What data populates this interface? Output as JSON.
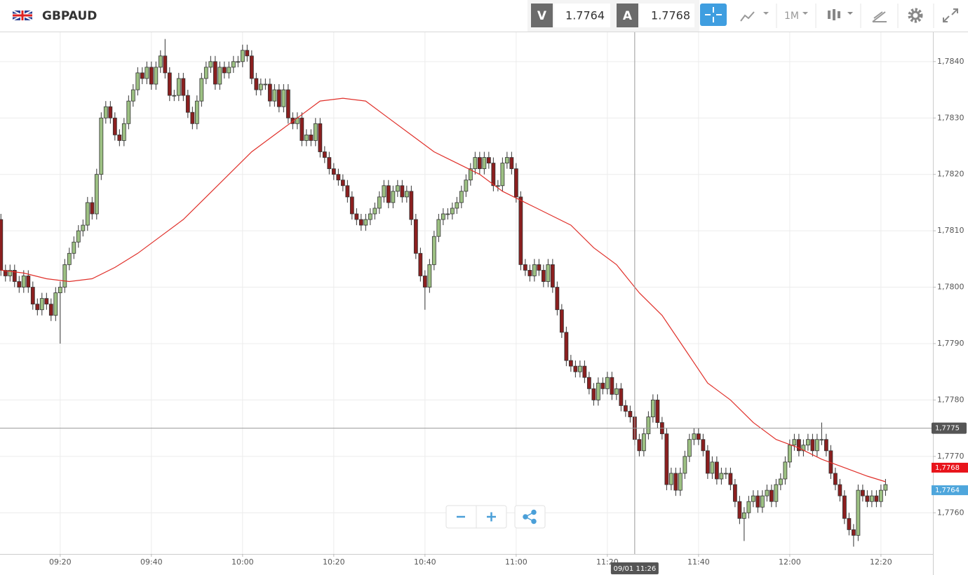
{
  "header": {
    "symbol": "GBPAUD",
    "bid_label": "V",
    "bid": "1.7764",
    "ask_label": "A",
    "ask": "1.7768",
    "timeframe": "1M"
  },
  "chart_data": {
    "type": "candlestick",
    "up_color": "#9dc183",
    "down_color": "#8b1f1f",
    "wick_color": "#333333",
    "open": [
      1.7812,
      1.7803,
      1.7802,
      1.7803,
      1.7801,
      1.78,
      1.7802,
      1.78,
      1.7797,
      1.7796,
      1.7798,
      1.7797,
      1.7795,
      1.7799,
      1.78,
      1.7804,
      1.7806,
      1.7808,
      1.781,
      1.7811,
      1.7815,
      1.7813,
      1.782,
      1.783,
      1.7832,
      1.783,
      1.7827,
      1.7826,
      1.7829,
      1.7833,
      1.7835,
      1.7838,
      1.7837,
      1.7839,
      1.7836,
      1.7839,
      1.7841,
      1.7838,
      1.7834,
      1.7834,
      1.7837,
      1.7834,
      1.7831,
      1.7829,
      1.7833,
      1.7837,
      1.7839,
      1.784,
      1.7836,
      1.7839,
      1.7838,
      1.7839,
      1.784,
      1.784,
      1.7842,
      1.7841,
      1.7837,
      1.7835,
      1.7836,
      1.7836,
      1.7833,
      1.7835,
      1.7832,
      1.7835,
      1.783,
      1.7829,
      1.783,
      1.7826,
      1.7827,
      1.7826,
      1.7829,
      1.7824,
      1.7823,
      1.7821,
      1.782,
      1.7819,
      1.7818,
      1.7816,
      1.7813,
      1.7812,
      1.7811,
      1.7812,
      1.7813,
      1.7814,
      1.7816,
      1.7818,
      1.7815,
      1.7817,
      1.7818,
      1.7816,
      1.7817,
      1.7812,
      1.7806,
      1.7802,
      1.78,
      1.7804,
      1.7809,
      1.7812,
      1.7813,
      1.7813,
      1.7814,
      1.7815,
      1.7817,
      1.7819,
      1.7821,
      1.7823,
      1.7821,
      1.7823,
      1.7822,
      1.7818,
      1.7818,
      1.7822,
      1.7823,
      1.7821,
      1.7816,
      1.7804,
      1.7803,
      1.7802,
      1.7804,
      1.7803,
      1.7801,
      1.7804,
      1.78,
      1.7796,
      1.7792,
      1.7787,
      1.7786,
      1.7785,
      1.7786,
      1.7784,
      1.7782,
      1.778,
      1.7783,
      1.7782,
      1.7784,
      1.7781,
      1.7782,
      1.7779,
      1.7778,
      1.7777,
      1.7773,
      1.7771,
      1.7774,
      1.7777,
      1.778,
      1.7776,
      1.7774,
      1.7765,
      1.7767,
      1.7764,
      1.7767,
      1.777,
      1.7773,
      1.7774,
      1.7773,
      1.7771,
      1.7767,
      1.7769,
      1.7766,
      1.7767,
      1.7767,
      1.7765,
      1.7762,
      1.7759,
      1.776,
      1.7762,
      1.7763,
      1.7761,
      1.7763,
      1.7764,
      1.7762,
      1.7765,
      1.7766,
      1.7769,
      1.7772,
      1.7773,
      1.7771,
      1.7772,
      1.7773,
      1.7771,
      1.7773,
      1.7773,
      1.7771,
      1.7767,
      1.7765,
      1.7763,
      1.7759,
      1.7757,
      1.7756,
      1.7764,
      1.7763,
      1.7762,
      1.7763,
      1.7762,
      1.7764
    ],
    "high": [
      1.7813,
      1.7804,
      1.7804,
      1.7804,
      1.7802,
      1.7803,
      1.7803,
      1.7801,
      1.7798,
      1.7799,
      1.7799,
      1.7798,
      1.78,
      1.7801,
      1.7805,
      1.7807,
      1.7809,
      1.7811,
      1.7812,
      1.7816,
      1.7816,
      1.7821,
      1.7831,
      1.7833,
      1.7833,
      1.7831,
      1.7828,
      1.783,
      1.7834,
      1.7836,
      1.7839,
      1.7839,
      1.784,
      1.784,
      1.784,
      1.7842,
      1.7844,
      1.7839,
      1.7835,
      1.7838,
      1.7838,
      1.7835,
      1.7832,
      1.7834,
      1.7838,
      1.784,
      1.7841,
      1.7841,
      1.784,
      1.784,
      1.784,
      1.7841,
      1.7841,
      1.7843,
      1.7843,
      1.7842,
      1.7838,
      1.7837,
      1.7837,
      1.7837,
      1.7836,
      1.7836,
      1.7836,
      1.7836,
      1.7831,
      1.7831,
      1.7831,
      1.7828,
      1.7828,
      1.783,
      1.783,
      1.7825,
      1.7824,
      1.7822,
      1.7821,
      1.782,
      1.7819,
      1.7817,
      1.7814,
      1.7813,
      1.7813,
      1.7814,
      1.7815,
      1.7817,
      1.7819,
      1.7819,
      1.7818,
      1.7819,
      1.7819,
      1.7818,
      1.7818,
      1.7813,
      1.7807,
      1.7803,
      1.7805,
      1.781,
      1.7813,
      1.7814,
      1.7814,
      1.7815,
      1.7816,
      1.7818,
      1.782,
      1.7822,
      1.7824,
      1.7824,
      1.7824,
      1.7824,
      1.7823,
      1.7819,
      1.7823,
      1.7824,
      1.7824,
      1.7822,
      1.7817,
      1.7805,
      1.7804,
      1.7805,
      1.7805,
      1.7804,
      1.7805,
      1.7805,
      1.7801,
      1.7797,
      1.7793,
      1.7788,
      1.7787,
      1.7787,
      1.7787,
      1.7785,
      1.7783,
      1.7784,
      1.7784,
      1.7785,
      1.7785,
      1.7783,
      1.7783,
      1.778,
      1.7779,
      1.7778,
      1.7774,
      1.7775,
      1.7778,
      1.7781,
      1.7781,
      1.7777,
      1.7775,
      1.7768,
      1.7768,
      1.7768,
      1.7771,
      1.7774,
      1.7775,
      1.7775,
      1.7774,
      1.7772,
      1.777,
      1.777,
      1.7768,
      1.7768,
      1.7768,
      1.7766,
      1.7763,
      1.7761,
      1.7763,
      1.7764,
      1.7764,
      1.7764,
      1.7765,
      1.7765,
      1.7766,
      1.7767,
      1.777,
      1.7773,
      1.7774,
      1.7774,
      1.7773,
      1.7774,
      1.7774,
      1.7774,
      1.7776,
      1.7774,
      1.7772,
      1.7768,
      1.7766,
      1.7764,
      1.776,
      1.7758,
      1.7765,
      1.7765,
      1.7764,
      1.7764,
      1.7764,
      1.7765,
      1.7766
    ],
    "low": [
      1.7802,
      1.7801,
      1.7801,
      1.78,
      1.7799,
      1.7799,
      1.7799,
      1.7796,
      1.7795,
      1.7795,
      1.7796,
      1.7794,
      1.7794,
      1.779,
      1.7799,
      1.7803,
      1.7805,
      1.7807,
      1.7809,
      1.781,
      1.7812,
      1.7812,
      1.7819,
      1.7829,
      1.7829,
      1.7826,
      1.7825,
      1.7825,
      1.7828,
      1.7832,
      1.7834,
      1.7836,
      1.7836,
      1.7835,
      1.7835,
      1.7838,
      1.7837,
      1.7833,
      1.7833,
      1.7833,
      1.7833,
      1.783,
      1.7828,
      1.7828,
      1.7832,
      1.7836,
      1.7838,
      1.7835,
      1.7835,
      1.7837,
      1.7837,
      1.7838,
      1.7839,
      1.7839,
      1.784,
      1.7836,
      1.7834,
      1.7834,
      1.7835,
      1.7832,
      1.7832,
      1.7831,
      1.7831,
      1.7829,
      1.7828,
      1.7828,
      1.7825,
      1.7825,
      1.7825,
      1.7825,
      1.7823,
      1.7822,
      1.782,
      1.7819,
      1.7818,
      1.7817,
      1.7815,
      1.7812,
      1.7811,
      1.781,
      1.781,
      1.7811,
      1.7812,
      1.7813,
      1.7815,
      1.7814,
      1.7814,
      1.7816,
      1.7815,
      1.7815,
      1.7811,
      1.7805,
      1.7801,
      1.7796,
      1.7799,
      1.7803,
      1.7808,
      1.7811,
      1.7812,
      1.7812,
      1.7813,
      1.7814,
      1.7816,
      1.7818,
      1.782,
      1.782,
      1.782,
      1.7821,
      1.7817,
      1.7817,
      1.7817,
      1.7821,
      1.782,
      1.7815,
      1.7803,
      1.7802,
      1.7801,
      1.7801,
      1.7802,
      1.78,
      1.78,
      1.7799,
      1.7795,
      1.7791,
      1.7786,
      1.7785,
      1.7784,
      1.7784,
      1.7783,
      1.7781,
      1.7779,
      1.7779,
      1.7781,
      1.7781,
      1.778,
      1.778,
      1.7778,
      1.7777,
      1.7776,
      1.7772,
      1.777,
      1.777,
      1.7773,
      1.7776,
      1.7775,
      1.7773,
      1.7764,
      1.7764,
      1.7763,
      1.7763,
      1.7766,
      1.7769,
      1.7772,
      1.7772,
      1.777,
      1.7766,
      1.7766,
      1.7765,
      1.7765,
      1.7766,
      1.7764,
      1.7761,
      1.7758,
      1.7755,
      1.7759,
      1.7761,
      1.776,
      1.776,
      1.7762,
      1.7761,
      1.7761,
      1.7764,
      1.7765,
      1.7768,
      1.7771,
      1.777,
      1.777,
      1.7771,
      1.777,
      1.777,
      1.7772,
      1.777,
      1.7766,
      1.7764,
      1.7762,
      1.7758,
      1.7756,
      1.7754,
      1.7755,
      1.7762,
      1.7761,
      1.7761,
      1.7761,
      1.7761,
      1.7763
    ],
    "close": [
      1.7803,
      1.7802,
      1.7803,
      1.7801,
      1.78,
      1.7802,
      1.78,
      1.7797,
      1.7796,
      1.7798,
      1.7797,
      1.7795,
      1.7799,
      1.78,
      1.7804,
      1.7806,
      1.7808,
      1.781,
      1.7811,
      1.7815,
      1.7813,
      1.782,
      1.783,
      1.7832,
      1.783,
      1.7827,
      1.7826,
      1.7829,
      1.7833,
      1.7835,
      1.7838,
      1.7837,
      1.7839,
      1.7836,
      1.7839,
      1.7841,
      1.7838,
      1.7834,
      1.7834,
      1.7837,
      1.7834,
      1.7831,
      1.7829,
      1.7833,
      1.7837,
      1.7839,
      1.784,
      1.7836,
      1.7839,
      1.7838,
      1.7839,
      1.784,
      1.784,
      1.7842,
      1.7841,
      1.7837,
      1.7835,
      1.7836,
      1.7836,
      1.7833,
      1.7835,
      1.7832,
      1.7835,
      1.783,
      1.7829,
      1.783,
      1.7826,
      1.7827,
      1.7826,
      1.7829,
      1.7824,
      1.7823,
      1.7821,
      1.782,
      1.7819,
      1.7818,
      1.7816,
      1.7813,
      1.7812,
      1.7811,
      1.7812,
      1.7813,
      1.7814,
      1.7816,
      1.7818,
      1.7815,
      1.7817,
      1.7818,
      1.7816,
      1.7817,
      1.7812,
      1.7806,
      1.7802,
      1.78,
      1.7804,
      1.7809,
      1.7812,
      1.7813,
      1.7813,
      1.7814,
      1.7815,
      1.7817,
      1.7819,
      1.7821,
      1.7823,
      1.7821,
      1.7823,
      1.7822,
      1.7818,
      1.7818,
      1.7822,
      1.7823,
      1.7821,
      1.7816,
      1.7804,
      1.7803,
      1.7802,
      1.7804,
      1.7803,
      1.7801,
      1.7804,
      1.78,
      1.7796,
      1.7792,
      1.7787,
      1.7786,
      1.7785,
      1.7786,
      1.7784,
      1.7782,
      1.778,
      1.7783,
      1.7782,
      1.7784,
      1.7781,
      1.7782,
      1.7779,
      1.7778,
      1.7777,
      1.7773,
      1.7771,
      1.7774,
      1.7777,
      1.778,
      1.7776,
      1.7774,
      1.7765,
      1.7767,
      1.7764,
      1.7767,
      1.777,
      1.7773,
      1.7774,
      1.7773,
      1.7771,
      1.7767,
      1.7769,
      1.7766,
      1.7767,
      1.7767,
      1.7765,
      1.7762,
      1.7759,
      1.776,
      1.7762,
      1.7763,
      1.7761,
      1.7763,
      1.7764,
      1.7762,
      1.7765,
      1.7766,
      1.7769,
      1.7772,
      1.7773,
      1.7771,
      1.7772,
      1.7773,
      1.7771,
      1.7773,
      1.7773,
      1.7771,
      1.7767,
      1.7765,
      1.7763,
      1.7759,
      1.7757,
      1.7756,
      1.7764,
      1.7763,
      1.7762,
      1.7763,
      1.7762,
      1.7764,
      1.7765
    ],
    "ma": {
      "color": "#e0302a",
      "x": [
        0,
        5,
        10,
        15,
        20,
        25,
        30,
        35,
        40,
        45,
        50,
        55,
        60,
        65,
        70,
        75,
        80,
        85,
        90,
        95,
        100,
        105,
        110,
        115,
        120,
        125,
        130,
        135,
        140,
        145,
        150,
        155,
        160,
        165,
        170,
        175,
        180,
        185,
        190,
        194
      ],
      "values": [
        1.7803,
        1.78025,
        1.78015,
        1.7801,
        1.78015,
        1.78035,
        1.7806,
        1.7809,
        1.7812,
        1.7816,
        1.782,
        1.7824,
        1.7827,
        1.783,
        1.7833,
        1.78335,
        1.7833,
        1.783,
        1.7827,
        1.7824,
        1.7822,
        1.782,
        1.7817,
        1.7815,
        1.7813,
        1.7811,
        1.7807,
        1.7804,
        1.7799,
        1.7795,
        1.7789,
        1.7783,
        1.778,
        1.7776,
        1.7773,
        1.77715,
        1.77695,
        1.7768,
        1.77665,
        1.77655
      ]
    },
    "xlim": [
      -0.2,
      204.4
    ],
    "xticks": [
      {
        "value": 13,
        "label": "09:20"
      },
      {
        "value": 33,
        "label": "09:40"
      },
      {
        "value": 53,
        "label": "10:00"
      },
      {
        "value": 73,
        "label": "10:20"
      },
      {
        "value": 93,
        "label": "10:40"
      },
      {
        "value": 113,
        "label": "11:00"
      },
      {
        "value": 133,
        "label": "11:20"
      },
      {
        "value": 153,
        "label": "11:40"
      },
      {
        "value": 173,
        "label": "12:00"
      },
      {
        "value": 193,
        "label": "12:20"
      }
    ],
    "ylim": [
      1.77527,
      1.78452
    ],
    "yticks": [
      {
        "value": 1.776,
        "label": "1,7760"
      },
      {
        "value": 1.777,
        "label": "1,7770"
      },
      {
        "value": 1.778,
        "label": "1,7780"
      },
      {
        "value": 1.779,
        "label": "1,7790"
      },
      {
        "value": 1.78,
        "label": "1,7800"
      },
      {
        "value": 1.781,
        "label": "1,7810"
      },
      {
        "value": 1.782,
        "label": "1,7820"
      },
      {
        "value": 1.783,
        "label": "1,7830"
      },
      {
        "value": 1.784,
        "label": "1,7840"
      }
    ],
    "grid": true,
    "crosshair": {
      "x": {
        "value": 139,
        "label": "09/01 11:26"
      },
      "y": {
        "value": 1.7775,
        "label": "1,7775"
      }
    },
    "price_tags": [
      {
        "value": 1.7768,
        "label": "1,7768",
        "color": "#e8141b"
      },
      {
        "value": 1.7764,
        "label": "1,7764",
        "color": "#4ea6dc"
      }
    ]
  }
}
